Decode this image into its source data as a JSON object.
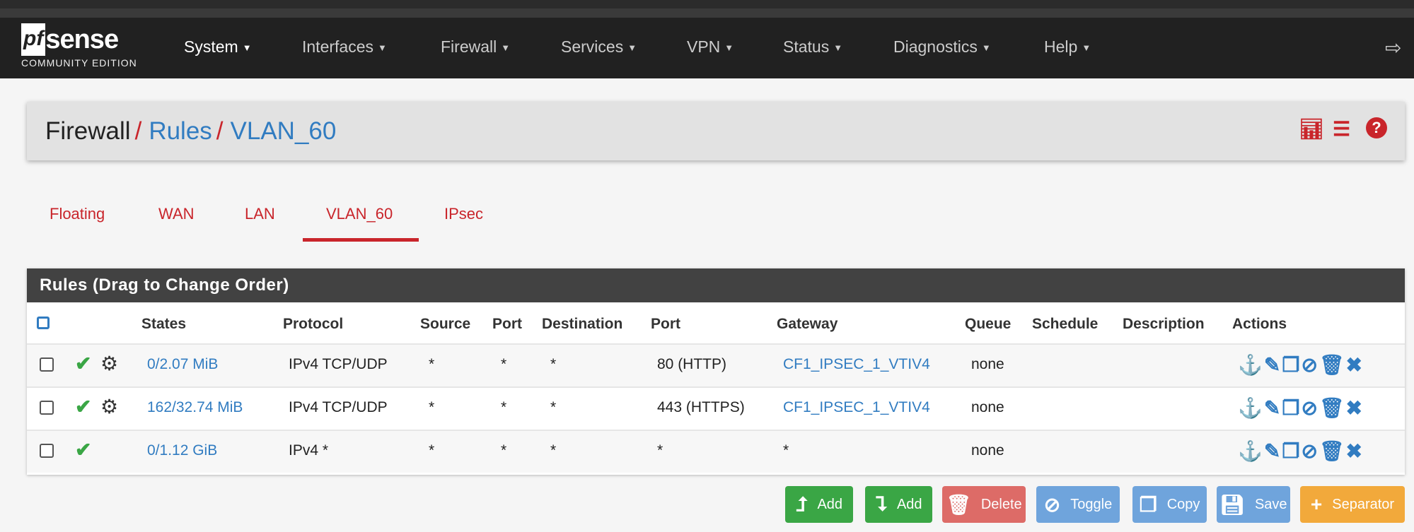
{
  "brand": {
    "logo_text": "pfsense",
    "edition": "COMMUNITY EDITION"
  },
  "nav": [
    {
      "label": "System"
    },
    {
      "label": "Interfaces"
    },
    {
      "label": "Firewall"
    },
    {
      "label": "Services"
    },
    {
      "label": "VPN"
    },
    {
      "label": "Status"
    },
    {
      "label": "Diagnostics"
    },
    {
      "label": "Help"
    }
  ],
  "breadcrumb": {
    "root": "Firewall",
    "rules": "Rules",
    "current": "VLAN_60",
    "sep": "/"
  },
  "tabs": [
    {
      "label": "Floating"
    },
    {
      "label": "WAN"
    },
    {
      "label": "LAN"
    },
    {
      "label": "VLAN_60",
      "active": true
    },
    {
      "label": "IPsec"
    }
  ],
  "panel": {
    "title": "Rules (Drag to Change Order)"
  },
  "columns": [
    "States",
    "Protocol",
    "Source",
    "Port",
    "Destination",
    "Port",
    "Gateway",
    "Queue",
    "Schedule",
    "Description",
    "Actions"
  ],
  "rows": [
    {
      "enabled": true,
      "advanced": true,
      "states": "0/2.07 MiB",
      "protocol": "IPv4 TCP/UDP",
      "source": "*",
      "source_port": "*",
      "destination": "*",
      "dest_port": "80 (HTTP)",
      "gateway": "CF1_IPSEC_1_VTIV4",
      "queue": "none",
      "schedule": "",
      "description": ""
    },
    {
      "enabled": true,
      "advanced": true,
      "states": "162/32.74 MiB",
      "protocol": "IPv4 TCP/UDP",
      "source": "*",
      "source_port": "*",
      "destination": "*",
      "dest_port": "443 (HTTPS)",
      "gateway": "CF1_IPSEC_1_VTIV4",
      "queue": "none",
      "schedule": "",
      "description": ""
    },
    {
      "enabled": true,
      "advanced": false,
      "states": "0/1.12 GiB",
      "protocol": "IPv4 *",
      "source": "*",
      "source_port": "*",
      "destination": "*",
      "dest_port": "*",
      "gateway": "*",
      "queue": "none",
      "schedule": "",
      "description": ""
    }
  ],
  "buttons": {
    "add_top": "Add",
    "add_bottom": "Add",
    "delete": "Delete",
    "toggle": "Toggle",
    "copy": "Copy",
    "save": "Save",
    "separator": "Separator"
  },
  "colors": {
    "brand_red": "#c9252b",
    "link_blue": "#317cc1",
    "success_green": "#3aa645",
    "warning_orange": "#f2a93b"
  }
}
